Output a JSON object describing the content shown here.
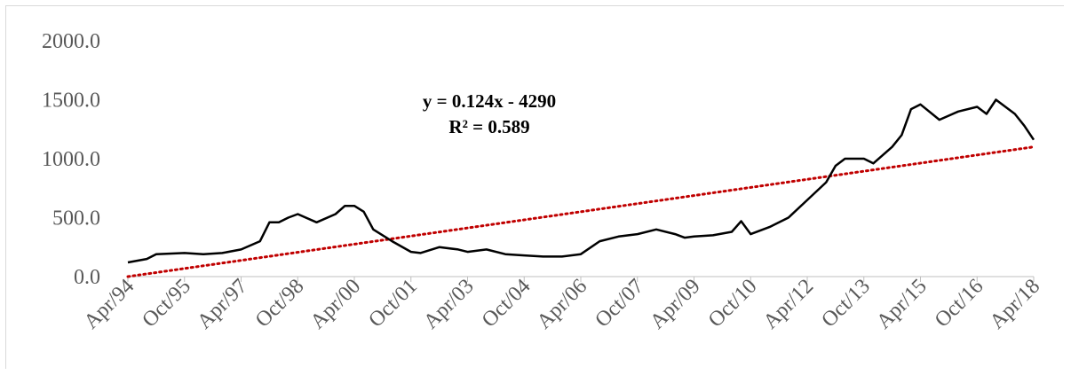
{
  "chart_data": {
    "type": "line",
    "title": "",
    "xlabel": "",
    "ylabel": "",
    "ylim": [
      0,
      2000
    ],
    "y_ticks": [
      "0.0",
      "500.0",
      "1000.0",
      "1500.0",
      "2000.0"
    ],
    "x_ticks": [
      "Apr/94",
      "Oct/95",
      "Apr/97",
      "Oct/98",
      "Apr/00",
      "Oct/01",
      "Apr/03",
      "Oct/04",
      "Apr/06",
      "Oct/07",
      "Apr/09",
      "Oct/10",
      "Apr/12",
      "Oct/13",
      "Apr/15",
      "Oct/16",
      "Apr/18"
    ],
    "grid": false,
    "legend": "none",
    "trendline": {
      "equation": "y = 0.124x - 4290",
      "r_squared": "R² = 0.589",
      "start_value": 0,
      "end_value": 1100,
      "color": "#c00000"
    },
    "series": [
      {
        "color": "#000000",
        "points": [
          [
            "Apr/94",
            120
          ],
          [
            "Oct/94",
            150
          ],
          [
            "Jan/95",
            190
          ],
          [
            "Oct/95",
            200
          ],
          [
            "Apr/96",
            190
          ],
          [
            "Oct/96",
            200
          ],
          [
            "Apr/97",
            230
          ],
          [
            "Oct/97",
            300
          ],
          [
            "Jan/98",
            460
          ],
          [
            "Apr/98",
            460
          ],
          [
            "Jul/98",
            500
          ],
          [
            "Oct/98",
            530
          ],
          [
            "Apr/99",
            460
          ],
          [
            "Oct/99",
            530
          ],
          [
            "Jan/00",
            600
          ],
          [
            "Apr/00",
            600
          ],
          [
            "Jul/00",
            550
          ],
          [
            "Oct/00",
            400
          ],
          [
            "Apr/01",
            300
          ],
          [
            "Oct/01",
            210
          ],
          [
            "Jan/02",
            200
          ],
          [
            "Jul/02",
            250
          ],
          [
            "Jan/03",
            230
          ],
          [
            "Apr/03",
            210
          ],
          [
            "Oct/03",
            230
          ],
          [
            "Apr/04",
            190
          ],
          [
            "Oct/04",
            180
          ],
          [
            "Apr/05",
            170
          ],
          [
            "Oct/05",
            170
          ],
          [
            "Apr/06",
            190
          ],
          [
            "Oct/06",
            300
          ],
          [
            "Apr/07",
            340
          ],
          [
            "Oct/07",
            360
          ],
          [
            "Apr/08",
            400
          ],
          [
            "Oct/08",
            360
          ],
          [
            "Jan/09",
            330
          ],
          [
            "Apr/09",
            340
          ],
          [
            "Oct/09",
            350
          ],
          [
            "Apr/10",
            380
          ],
          [
            "Jul/10",
            470
          ],
          [
            "Oct/10",
            360
          ],
          [
            "Apr/11",
            420
          ],
          [
            "Oct/11",
            500
          ],
          [
            "Apr/12",
            650
          ],
          [
            "Oct/12",
            800
          ],
          [
            "Jan/13",
            940
          ],
          [
            "Apr/13",
            1000
          ],
          [
            "Oct/13",
            1000
          ],
          [
            "Jan/14",
            960
          ],
          [
            "Jul/14",
            1100
          ],
          [
            "Oct/14",
            1200
          ],
          [
            "Jan/15",
            1420
          ],
          [
            "Apr/15",
            1460
          ],
          [
            "Oct/15",
            1330
          ],
          [
            "Apr/16",
            1400
          ],
          [
            "Oct/16",
            1440
          ],
          [
            "Jan/17",
            1380
          ],
          [
            "Apr/17",
            1500
          ],
          [
            "Oct/17",
            1380
          ],
          [
            "Jan/18",
            1280
          ],
          [
            "Apr/18",
            1160
          ]
        ]
      }
    ]
  }
}
